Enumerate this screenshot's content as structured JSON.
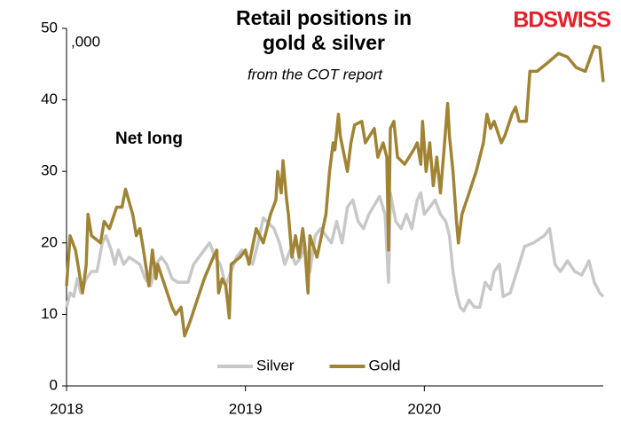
{
  "chart_data": {
    "type": "line",
    "title": [
      "Retail positions in",
      "gold & silver"
    ],
    "subtitle": "from the COT report",
    "logo": "BDSWISS",
    "annotations": [
      ",000",
      "Net long"
    ],
    "xlim": [
      2018,
      2021
    ],
    "xticks": [
      2018,
      2019,
      2020
    ],
    "ylim": [
      0,
      50
    ],
    "yticks": [
      0,
      10,
      20,
      30,
      40,
      50
    ],
    "grid": false,
    "legend": "bottom",
    "series": [
      {
        "name": "Silver",
        "color": "#c8c8c8",
        "x": [
          2018.0,
          2018.02,
          2018.04,
          2018.06,
          2018.08,
          2018.11,
          2018.14,
          2018.17,
          2018.2,
          2018.22,
          2018.25,
          2018.27,
          2018.29,
          2018.32,
          2018.35,
          2018.41,
          2018.44,
          2018.47,
          2018.5,
          2018.53,
          2018.56,
          2018.59,
          2018.62,
          2018.68,
          2018.71,
          2018.74,
          2018.8,
          2018.83,
          2018.86,
          2018.89,
          2018.92,
          2018.95,
          2018.98,
          2019.04,
          2019.07,
          2019.1,
          2019.16,
          2019.19,
          2019.22,
          2019.25,
          2019.28,
          2019.31,
          2019.33,
          2019.36,
          2019.39,
          2019.42,
          2019.48,
          2019.51,
          2019.54,
          2019.57,
          2019.6,
          2019.63,
          2019.66,
          2019.69,
          2019.75,
          2019.78,
          2019.8,
          2019.81,
          2019.84,
          2019.87,
          2019.9,
          2019.93,
          2019.96,
          2019.98,
          2020.0,
          2020.06,
          2020.09,
          2020.12,
          2020.14,
          2020.16,
          2020.18,
          2020.2,
          2020.22,
          2020.25,
          2020.28,
          2020.31,
          2020.34,
          2020.37,
          2020.39,
          2020.42,
          2020.44,
          2020.48,
          2020.53,
          2020.56,
          2020.61,
          2020.67,
          2020.7,
          2020.73,
          2020.76,
          2020.8,
          2020.84,
          2020.88,
          2020.92,
          2020.95,
          2020.98,
          2021.0
        ],
        "values": [
          11,
          13,
          12.5,
          15,
          13,
          15,
          16,
          16,
          20,
          21,
          19,
          17,
          19,
          17,
          18,
          17,
          15,
          14,
          17,
          18,
          17,
          15,
          14.5,
          14.5,
          17,
          18,
          20,
          18,
          17,
          14,
          16,
          18,
          19,
          17,
          20,
          23.5,
          22,
          20,
          17,
          19,
          17,
          18,
          20,
          16,
          21,
          22,
          20,
          23,
          20,
          25,
          26,
          23,
          22,
          24,
          26.5,
          24,
          14.5,
          27,
          23,
          22,
          24,
          22,
          26,
          27,
          24,
          26,
          24,
          23,
          21,
          16,
          13,
          11,
          10.5,
          12,
          11,
          11,
          14.5,
          13.5,
          16,
          17,
          12.5,
          13,
          17,
          19.5,
          20,
          21,
          22,
          17,
          16,
          17.5,
          16,
          15.5,
          17.5,
          14.5,
          13,
          12.5
        ]
      },
      {
        "name": "Gold",
        "color": "#a08434",
        "x": [
          2018.0,
          2018.02,
          2018.05,
          2018.09,
          2018.11,
          2018.12,
          2018.14,
          2018.19,
          2018.21,
          2018.24,
          2018.28,
          2018.31,
          2018.33,
          2018.37,
          2018.39,
          2018.41,
          2018.43,
          2018.46,
          2018.48,
          2018.5,
          2018.51,
          2018.55,
          2018.59,
          2018.61,
          2018.64,
          2018.66,
          2018.69,
          2018.73,
          2018.77,
          2018.82,
          2018.84,
          2018.85,
          2018.87,
          2018.89,
          2018.91,
          2018.92,
          2018.97,
          2019.0,
          2019.02,
          2019.06,
          2019.1,
          2019.14,
          2019.17,
          2019.18,
          2019.2,
          2019.21,
          2019.23,
          2019.24,
          2019.26,
          2019.28,
          2019.3,
          2019.32,
          2019.33,
          2019.35,
          2019.36,
          2019.4,
          2019.45,
          2019.47,
          2019.49,
          2019.5,
          2019.52,
          2019.53,
          2019.57,
          2019.59,
          2019.61,
          2019.65,
          2019.67,
          2019.72,
          2019.74,
          2019.77,
          2019.79,
          2019.8,
          2019.81,
          2019.83,
          2019.85,
          2019.89,
          2019.94,
          2019.96,
          2019.98,
          2019.99,
          2020.01,
          2020.03,
          2020.05,
          2020.07,
          2020.09,
          2020.11,
          2020.13,
          2020.14,
          2020.16,
          2020.18,
          2020.19,
          2020.21,
          2020.25,
          2020.29,
          2020.33,
          2020.35,
          2020.37,
          2020.39,
          2020.43,
          2020.45,
          2020.49,
          2020.51,
          2020.53,
          2020.57,
          2020.59,
          2020.63,
          2020.68,
          2020.75,
          2020.8,
          2020.85,
          2020.9,
          2020.95,
          2020.98,
          2021.0
        ],
        "values": [
          14,
          21,
          19,
          13,
          17,
          24,
          21,
          20,
          23,
          22,
          25,
          25,
          27.5,
          24,
          21,
          22,
          19,
          14,
          19,
          15,
          17,
          14,
          11,
          10,
          11,
          7,
          9,
          12,
          15,
          18,
          19,
          13,
          15,
          14,
          9.5,
          17,
          18,
          19,
          17,
          22,
          20,
          24,
          26,
          30,
          27,
          31.5,
          26,
          24,
          18,
          21,
          18,
          22,
          20,
          13,
          21,
          18,
          24,
          30,
          34,
          33,
          38,
          35,
          30,
          34,
          36.5,
          37,
          34,
          36,
          32,
          34,
          32,
          19,
          36,
          37,
          32,
          31,
          33,
          34,
          31,
          37,
          30,
          34,
          28,
          32,
          27,
          33,
          39.5,
          35,
          30,
          23,
          20,
          24,
          27,
          30,
          34,
          38,
          36,
          37,
          34,
          35,
          38,
          39,
          37,
          37,
          44,
          44,
          45,
          46.5,
          46,
          44.5,
          44,
          47.5,
          47.3,
          42.5
        ]
      }
    ]
  }
}
